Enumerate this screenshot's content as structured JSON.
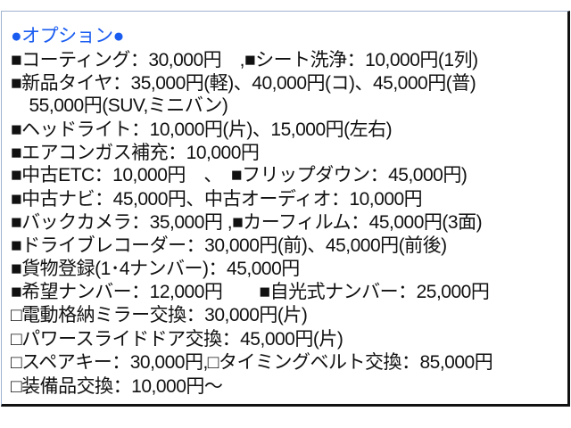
{
  "title": "●オプション●",
  "lines": [
    "■コーティング：30,000円　,■シート洗浄：10,000円(1列)",
    "■新品タイヤ：35,000円(軽)、40,000円(コ)、45,000円(普)",
    "　55,000円(SUV,ミニバン)",
    "■ヘッドライト：10,000円(片)、15,000円(左右)",
    "■エアコンガス補充：10,000円",
    "■中古ETC：10,000円　、　■フリップダウン：45,000円)",
    "■中古ナビ：45,000円、中古オーディオ：10,000円",
    "■バックカメラ：35,000円 ,■カーフィルム：45,000円(3面)",
    "■ドライブレコーダー：30,000円(前)、45,000円(前後)",
    "■貨物登録(1･4ナンバー)：45,000円",
    "■希望ナンバー：12,000円　　■自光式ナンバー：25,000円",
    "□電動格納ミラー交換：30,000円(片)",
    "□パワースライドドア交換：45,000円(片)",
    "□スペアキー：30,000円,□タイミングベルト交換：85,000円",
    "□装備品交換：10,000円～"
  ]
}
